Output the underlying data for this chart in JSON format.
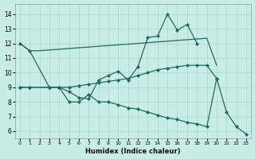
{
  "xlabel": "Humidex (Indice chaleur)",
  "bg_color": "#c8ece6",
  "line_color": "#1e6b5e",
  "grid_color": "#b0d8d0",
  "xlim": [
    -0.5,
    23.5
  ],
  "ylim": [
    5.5,
    14.7
  ],
  "xticks": [
    0,
    1,
    2,
    3,
    4,
    5,
    6,
    7,
    8,
    9,
    10,
    11,
    12,
    13,
    14,
    15,
    16,
    17,
    18,
    19,
    20,
    21,
    22,
    23
  ],
  "yticks": [
    6,
    7,
    8,
    9,
    10,
    11,
    12,
    13,
    14
  ],
  "line1_x": [
    0,
    1,
    2,
    3,
    4,
    5,
    6,
    7,
    8,
    9,
    10,
    11,
    12,
    13,
    14,
    15,
    16,
    17,
    18,
    19,
    20
  ],
  "line1_y": [
    12.0,
    11.5,
    11.5,
    11.55,
    11.6,
    11.65,
    11.7,
    11.75,
    11.8,
    11.85,
    11.9,
    11.95,
    12.0,
    12.05,
    12.1,
    12.15,
    12.2,
    12.25,
    12.3,
    12.35,
    10.5
  ],
  "line2_x": [
    0,
    1,
    3,
    4,
    5,
    6,
    7,
    8,
    9,
    10,
    11,
    12,
    13,
    14,
    15,
    16,
    17,
    18
  ],
  "line2_y": [
    12.0,
    11.5,
    9.0,
    9.0,
    8.7,
    8.3,
    8.2,
    9.5,
    9.8,
    10.1,
    9.5,
    10.4,
    12.4,
    12.5,
    14.0,
    12.9,
    13.3,
    12.0
  ],
  "line3_x": [
    0,
    1,
    3,
    4,
    5,
    6,
    7,
    8,
    9,
    10,
    11,
    12,
    13,
    14,
    15,
    16,
    17,
    18,
    19,
    20
  ],
  "line3_y": [
    9.0,
    9.0,
    9.0,
    9.0,
    9.0,
    9.1,
    9.2,
    9.3,
    9.4,
    9.5,
    9.6,
    9.8,
    10.0,
    10.2,
    10.3,
    10.4,
    10.5,
    10.5,
    10.5,
    9.6
  ],
  "line4_x": [
    0,
    1,
    3,
    4,
    5,
    6,
    7,
    8,
    9,
    10,
    11,
    12,
    13,
    14,
    15,
    16,
    17,
    18,
    19,
    20,
    21,
    22,
    23
  ],
  "line4_y": [
    9.0,
    9.0,
    9.0,
    9.0,
    8.0,
    8.0,
    8.5,
    8.0,
    8.0,
    7.8,
    7.6,
    7.5,
    7.3,
    7.1,
    6.9,
    6.8,
    6.6,
    6.5,
    6.3,
    9.6,
    7.3,
    6.3,
    5.8
  ]
}
